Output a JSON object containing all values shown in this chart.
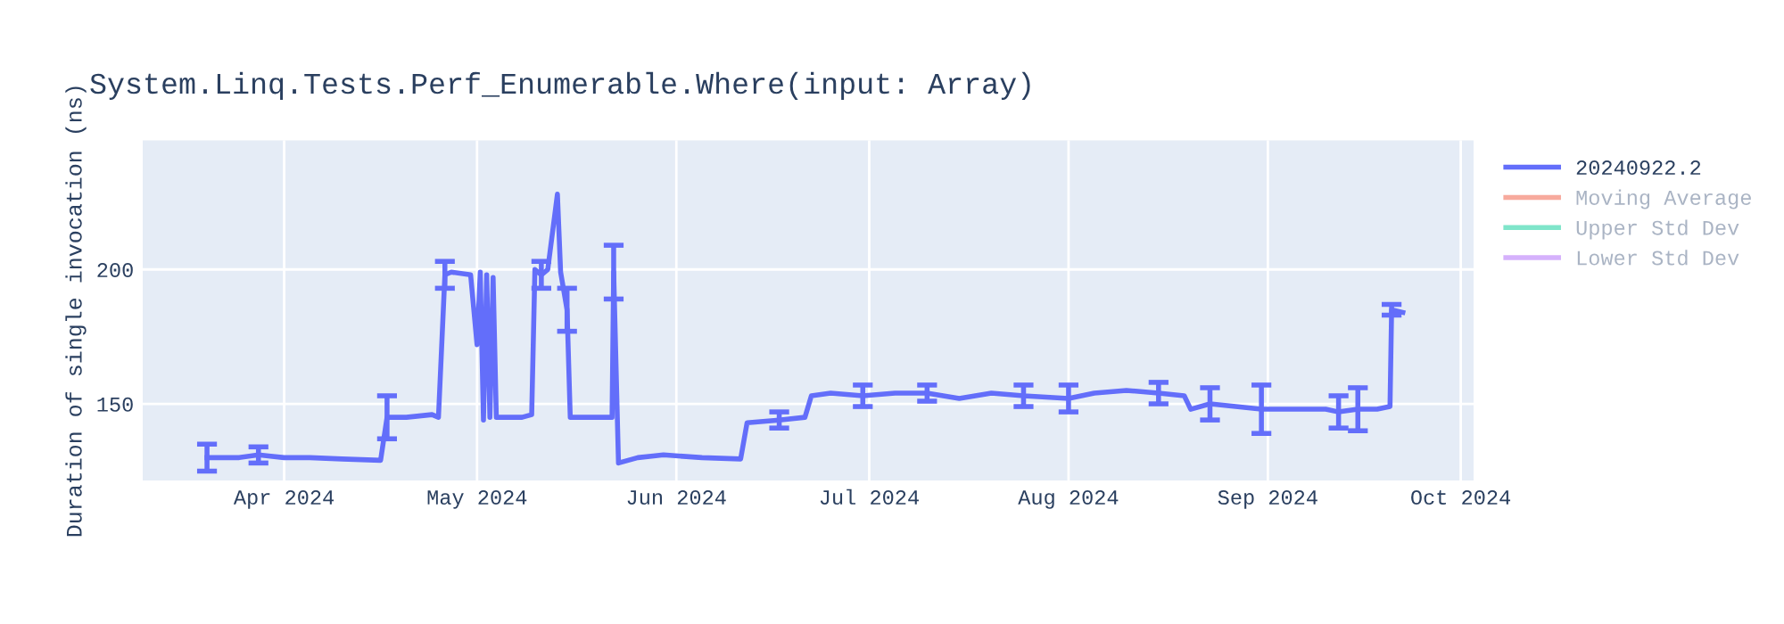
{
  "chart_data": {
    "type": "line",
    "title": "System.Linq.Tests.Perf_Enumerable.Where(input: Array)",
    "ylabel": "Duration of single invocation (ns)",
    "x": [
      "2024-03-20",
      "2024-03-25",
      "2024-03-28",
      "2024-04-01",
      "2024-04-05",
      "2024-04-10",
      "2024-04-16",
      "2024-04-17",
      "2024-04-20",
      "2024-04-24",
      "2024-04-25",
      "2024-04-26",
      "2024-04-27",
      "2024-04-30",
      "2024-05-01",
      "2024-05-01T12:00",
      "2024-05-02",
      "2024-05-02T12:00",
      "2024-05-03",
      "2024-05-03T12:00",
      "2024-05-04",
      "2024-05-08",
      "2024-05-09T12:00",
      "2024-05-10",
      "2024-05-11",
      "2024-05-12",
      "2024-05-13T12:00",
      "2024-05-14",
      "2024-05-15",
      "2024-05-15T12:00",
      "2024-05-19",
      "2024-05-22",
      "2024-05-22T06:00",
      "2024-05-23",
      "2024-05-26",
      "2024-05-30",
      "2024-06-05",
      "2024-06-11",
      "2024-06-12",
      "2024-06-17",
      "2024-06-21",
      "2024-06-22",
      "2024-06-25",
      "2024-06-30",
      "2024-07-05",
      "2024-07-10",
      "2024-07-15",
      "2024-07-20",
      "2024-07-25",
      "2024-08-01",
      "2024-08-05",
      "2024-08-10",
      "2024-08-15",
      "2024-08-19",
      "2024-08-20",
      "2024-08-23",
      "2024-08-27",
      "2024-08-31",
      "2024-09-05",
      "2024-09-10",
      "2024-09-12",
      "2024-09-15",
      "2024-09-18",
      "2024-09-20",
      "2024-09-20T06:00",
      "2024-09-22"
    ],
    "series": [
      {
        "name": "20240922.2",
        "color": "#636efa",
        "values": [
          130,
          130,
          131,
          130,
          130,
          129.5,
          129,
          145,
          145,
          146,
          145,
          198,
          199,
          198,
          172,
          199,
          144,
          198,
          145,
          197,
          145,
          145,
          146,
          200,
          198,
          200,
          228,
          199,
          185,
          145,
          145,
          145,
          199,
          128,
          130,
          131,
          130,
          129.5,
          143,
          144,
          145,
          153,
          154,
          153,
          154,
          154,
          152,
          154,
          153,
          152,
          154,
          155,
          154,
          153,
          148,
          150,
          149,
          148,
          148,
          148,
          147,
          148,
          148,
          149,
          185,
          184
        ],
        "errors": [
          5,
          null,
          3,
          null,
          null,
          null,
          null,
          8,
          null,
          null,
          null,
          5,
          null,
          null,
          null,
          null,
          null,
          null,
          null,
          null,
          null,
          null,
          null,
          null,
          5,
          null,
          null,
          null,
          8,
          null,
          null,
          null,
          10,
          null,
          null,
          null,
          null,
          null,
          null,
          3,
          null,
          null,
          null,
          4,
          null,
          3,
          null,
          null,
          4,
          5,
          null,
          null,
          4,
          null,
          null,
          6,
          null,
          9,
          null,
          null,
          6,
          8,
          null,
          null,
          2,
          null
        ]
      },
      {
        "name": "Moving Average",
        "color": "#ef553b",
        "values": [
          null,
          null,
          null,
          null,
          null,
          null,
          null,
          null,
          null,
          null,
          null,
          null,
          null,
          null,
          null,
          null,
          null,
          null,
          null,
          null,
          null,
          null,
          null,
          null,
          null,
          null,
          null,
          null,
          null,
          null,
          null,
          null,
          null,
          null,
          null,
          null,
          null,
          null,
          null,
          null,
          null,
          null,
          null,
          null,
          null,
          null,
          null,
          null,
          null,
          null,
          null,
          null,
          null,
          null,
          null,
          null,
          null,
          null,
          null,
          null,
          null,
          null,
          null,
          null,
          null,
          null
        ]
      },
      {
        "name": "Upper Std Dev",
        "color": "#00cc96",
        "values": [
          null,
          null,
          null,
          null,
          null,
          null,
          null,
          null,
          null,
          null,
          null,
          null,
          null,
          null,
          null,
          null,
          null,
          null,
          null,
          null,
          null,
          null,
          null,
          null,
          null,
          null,
          null,
          null,
          null,
          null,
          null,
          null,
          null,
          null,
          null,
          null,
          null,
          null,
          null,
          null,
          null,
          null,
          null,
          null,
          null,
          null,
          null,
          null,
          null,
          null,
          null,
          null,
          null,
          null,
          null,
          null,
          null,
          null,
          null,
          null,
          null,
          null,
          null,
          null,
          null,
          null
        ]
      },
      {
        "name": "Lower Std Dev",
        "color": "#ab63fa",
        "values": [
          null,
          null,
          null,
          null,
          null,
          null,
          null,
          null,
          null,
          null,
          null,
          null,
          null,
          null,
          null,
          null,
          null,
          null,
          null,
          null,
          null,
          null,
          null,
          null,
          null,
          null,
          null,
          null,
          null,
          null,
          null,
          null,
          null,
          null,
          null,
          null,
          null,
          null,
          null,
          null,
          null,
          null,
          null,
          null,
          null,
          null,
          null,
          null,
          null,
          null,
          null,
          null,
          null,
          null,
          null,
          null,
          null,
          null,
          null,
          null,
          null,
          null,
          null,
          null,
          null,
          null
        ]
      }
    ],
    "xlim": [
      "2024-03-10",
      "2024-10-03"
    ],
    "xticks": [
      {
        "value": "2024-04-01",
        "label": "Apr 2024"
      },
      {
        "value": "2024-05-01",
        "label": "May 2024"
      },
      {
        "value": "2024-06-01",
        "label": "Jun 2024"
      },
      {
        "value": "2024-07-01",
        "label": "Jul 2024"
      },
      {
        "value": "2024-08-01",
        "label": "Aug 2024"
      },
      {
        "value": "2024-09-01",
        "label": "Sep 2024"
      },
      {
        "value": "2024-10-01",
        "label": "Oct 2024"
      }
    ],
    "ylim": [
      121.5,
      248
    ],
    "yticks": [
      150,
      200
    ],
    "grid": true,
    "legend": "right",
    "line_style": "solid",
    "marker": "none"
  }
}
